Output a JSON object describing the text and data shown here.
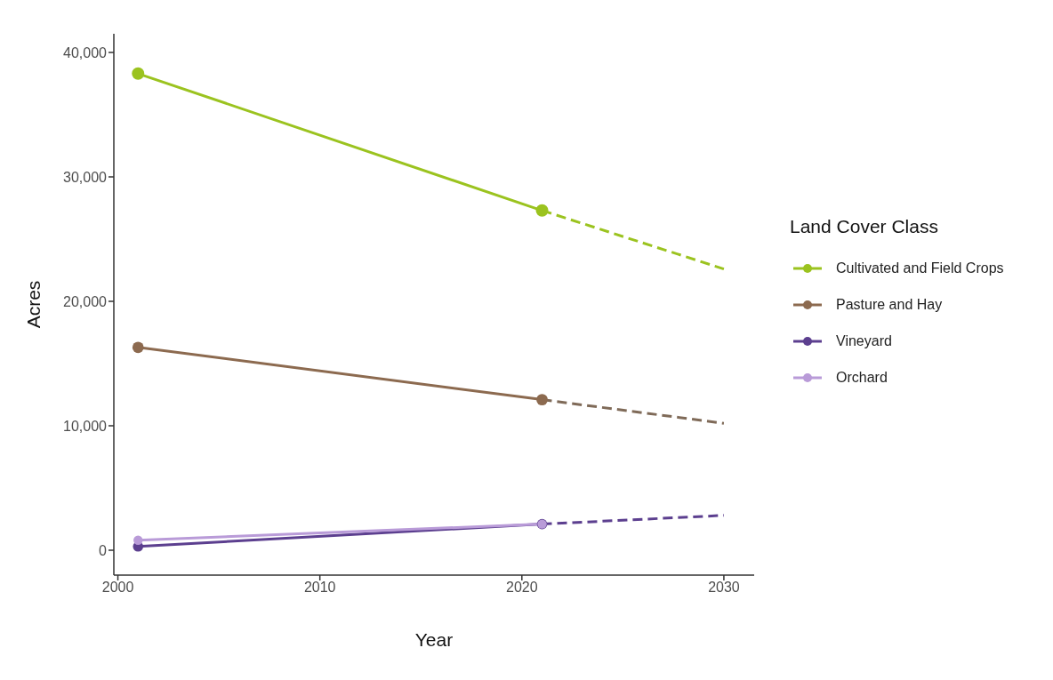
{
  "chart_data": {
    "type": "line",
    "xlabel": "Year",
    "ylabel": "Acres",
    "legend_title": "Land Cover Class",
    "legend": "right",
    "grid": false,
    "xlim": [
      1999.8,
      2031.5
    ],
    "xticks": [
      2000,
      2010,
      2020,
      2030
    ],
    "ylim": [
      -2000,
      41500
    ],
    "yticks": [
      0,
      {
        "value": 10000,
        "label": "10,000"
      },
      {
        "value": 20000,
        "label": "20,000"
      },
      {
        "value": 30000,
        "label": "30,000"
      },
      {
        "value": 40000,
        "label": "40,000"
      }
    ],
    "series": [
      {
        "name": "Cultivated and Field Crops",
        "color": "#9bc31f",
        "x": [
          2001,
          2021
        ],
        "values": [
          38300,
          27300
        ],
        "marker": "circle",
        "line_style": "solid"
      },
      {
        "name": "Pasture and Hay",
        "color": "#8c6a4f",
        "x": [
          2001,
          2021
        ],
        "values": [
          16300,
          12100
        ],
        "marker": "circle",
        "line_style": "solid"
      },
      {
        "name": "Vineyard",
        "color": "#5c3f8f",
        "x": [
          2001,
          2021
        ],
        "values": [
          300,
          2100
        ],
        "marker": "circle",
        "line_style": "solid"
      },
      {
        "name": "Orchard",
        "color": "#b99bd8",
        "x": [
          2001,
          2021
        ],
        "values": [
          800,
          2100
        ],
        "marker": "circle",
        "line_style": "solid"
      },
      {
        "color": "#9bc31f",
        "x": [
          2021,
          2030
        ],
        "values": [
          27300,
          22600
        ],
        "marker": "none",
        "line_style": "dashed"
      },
      {
        "color": "#7f6a58",
        "x": [
          2021,
          2030
        ],
        "values": [
          12100,
          10200
        ],
        "marker": "none",
        "line_style": "dashed"
      },
      {
        "color": "#5c3f8f",
        "x": [
          2021,
          2030
        ],
        "values": [
          2100,
          2800
        ],
        "marker": "none",
        "line_style": "dashed"
      }
    ]
  }
}
